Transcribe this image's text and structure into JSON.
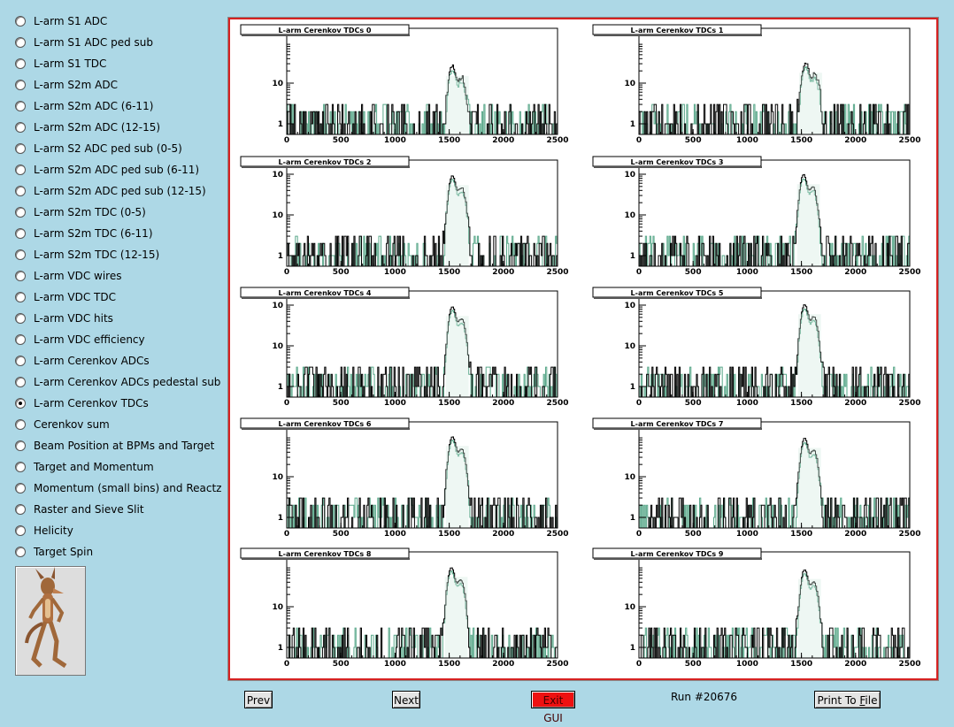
{
  "sidebar": {
    "items": [
      {
        "label": "L-arm S1 ADC",
        "selected": false
      },
      {
        "label": "L-arm S1 ADC ped sub",
        "selected": false
      },
      {
        "label": "L-arm S1 TDC",
        "selected": false
      },
      {
        "label": "L-arm S2m ADC",
        "selected": false
      },
      {
        "label": "L-arm S2m ADC (6-11)",
        "selected": false
      },
      {
        "label": "L-arm S2m ADC (12-15)",
        "selected": false
      },
      {
        "label": "L-arm S2 ADC ped sub (0-5)",
        "selected": false
      },
      {
        "label": "L-arm S2m ADC ped sub (6-11)",
        "selected": false
      },
      {
        "label": "L-arm S2m ADC ped sub (12-15)",
        "selected": false
      },
      {
        "label": "L-arm S2m TDC (0-5)",
        "selected": false
      },
      {
        "label": "L-arm S2m TDC (6-11)",
        "selected": false
      },
      {
        "label": "L-arm S2m TDC (12-15)",
        "selected": false
      },
      {
        "label": "L-arm VDC wires",
        "selected": false
      },
      {
        "label": "L-arm VDC TDC",
        "selected": false
      },
      {
        "label": "L-arm VDC hits",
        "selected": false
      },
      {
        "label": "L-arm VDC efficiency",
        "selected": false
      },
      {
        "label": "L-arm Cerenkov ADCs",
        "selected": false
      },
      {
        "label": "L-arm Cerenkov ADCs pedestal sub",
        "selected": false
      },
      {
        "label": "L-arm Cerenkov TDCs",
        "selected": true
      },
      {
        "label": "Cerenkov sum",
        "selected": false
      },
      {
        "label": "Beam Position at BPMs and Target",
        "selected": false
      },
      {
        "label": "Target and Momentum",
        "selected": false
      },
      {
        "label": "Momentum (small bins) and Reactz",
        "selected": false
      },
      {
        "label": "Raster and Sieve Slit",
        "selected": false
      },
      {
        "label": "Helicity",
        "selected": false
      },
      {
        "label": "Target Spin",
        "selected": false
      }
    ]
  },
  "buttons": {
    "prev": "Prev",
    "next": "Next",
    "exit": "Exit GUI",
    "print_pre": "Print To ",
    "print_u": "F",
    "print_post": "ile"
  },
  "run_label": "Run #20676",
  "colors": {
    "background": "#add8e6",
    "frame_border": "#d62222",
    "exit_button": "#ee1111",
    "histo_main": "#000000",
    "histo_overlay": "#5aa88a"
  },
  "chart_data": [
    {
      "type": "histogram",
      "title": "L-arm Cerenkov TDCs 0",
      "xlim": [
        0,
        2500
      ],
      "xticks": [
        "0",
        "500",
        "1000",
        "1500",
        "2000",
        "2500"
      ],
      "yscale": "log",
      "yticks": [
        "1",
        "10"
      ],
      "peak_x": 1530,
      "peak_y": 25
    },
    {
      "type": "histogram",
      "title": "L-arm Cerenkov TDCs 1",
      "xlim": [
        0,
        2500
      ],
      "xticks": [
        "0",
        "500",
        "1000",
        "1500",
        "2000",
        "2500"
      ],
      "yscale": "log",
      "yticks": [
        "1",
        "10"
      ],
      "peak_x": 1540,
      "peak_y": 30
    },
    {
      "type": "histogram",
      "title": "L-arm Cerenkov TDCs 2",
      "xlim": [
        0,
        2500
      ],
      "xticks": [
        "0",
        "500",
        "1000",
        "1500",
        "2000",
        "2500"
      ],
      "yscale": "log",
      "yticks": [
        "1",
        "10",
        "10"
      ],
      "peak_x": 1530,
      "peak_y": 90
    },
    {
      "type": "histogram",
      "title": "L-arm Cerenkov TDCs 3",
      "xlim": [
        0,
        2500
      ],
      "xticks": [
        "0",
        "500",
        "1000",
        "1500",
        "2000",
        "2500"
      ],
      "yscale": "log",
      "yticks": [
        "1",
        "10",
        "10"
      ],
      "peak_x": 1520,
      "peak_y": 95
    },
    {
      "type": "histogram",
      "title": "L-arm Cerenkov TDCs 4",
      "xlim": [
        0,
        2500
      ],
      "xticks": [
        "0",
        "500",
        "1000",
        "1500",
        "2000",
        "2500"
      ],
      "yscale": "log",
      "yticks": [
        "1",
        "10",
        "10"
      ],
      "peak_x": 1530,
      "peak_y": 90
    },
    {
      "type": "histogram",
      "title": "L-arm Cerenkov TDCs 5",
      "xlim": [
        0,
        2500
      ],
      "xticks": [
        "0",
        "500",
        "1000",
        "1500",
        "2000",
        "2500"
      ],
      "yscale": "log",
      "yticks": [
        "1",
        "10",
        "10"
      ],
      "peak_x": 1530,
      "peak_y": 100
    },
    {
      "type": "histogram",
      "title": "L-arm Cerenkov TDCs 6",
      "xlim": [
        0,
        2500
      ],
      "xticks": [
        "0",
        "500",
        "1000",
        "1500",
        "2000",
        "2500"
      ],
      "yscale": "log",
      "yticks": [
        "1",
        "10"
      ],
      "peak_x": 1530,
      "peak_y": 95
    },
    {
      "type": "histogram",
      "title": "L-arm Cerenkov TDCs 7",
      "xlim": [
        0,
        2500
      ],
      "xticks": [
        "0",
        "500",
        "1000",
        "1500",
        "2000",
        "2500"
      ],
      "yscale": "log",
      "yticks": [
        "1",
        "10"
      ],
      "peak_x": 1530,
      "peak_y": 85
    },
    {
      "type": "histogram",
      "title": "L-arm Cerenkov TDCs 8",
      "xlim": [
        0,
        2500
      ],
      "xticks": [
        "0",
        "500",
        "1000",
        "1500",
        "2000",
        "2500"
      ],
      "yscale": "log",
      "yticks": [
        "1",
        "10"
      ],
      "peak_x": 1520,
      "peak_y": 90
    },
    {
      "type": "histogram",
      "title": "L-arm Cerenkov TDCs 9",
      "xlim": [
        0,
        2500
      ],
      "xticks": [
        "0",
        "500",
        "1000",
        "1500",
        "2000",
        "2500"
      ],
      "yscale": "log",
      "yticks": [
        "1",
        "10"
      ],
      "peak_x": 1530,
      "peak_y": 80
    }
  ]
}
